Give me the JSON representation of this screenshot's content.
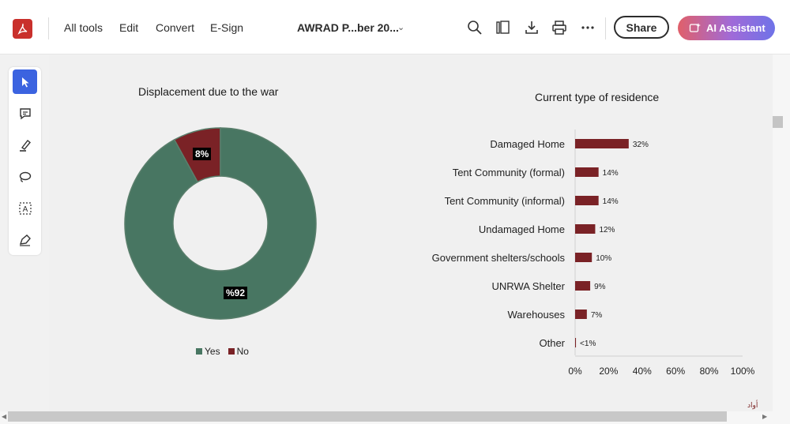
{
  "toolbar": {
    "menu": [
      "All tools",
      "Edit",
      "Convert",
      "E-Sign"
    ],
    "document_title": "AWRAD P...ber 20...",
    "share_label": "Share",
    "ai_label": "AI Assistant",
    "icons": [
      "search-icon",
      "pages-icon",
      "download-icon",
      "print-icon",
      "more-icon"
    ]
  },
  "tools": [
    "select-icon",
    "comment-icon",
    "highlight-icon",
    "lasso-icon",
    "text-select-icon",
    "sign-icon"
  ],
  "page": {
    "watermark": "ﺃﻭﺍﺩ"
  },
  "chart_data": [
    {
      "type": "pie",
      "title": "Displacement due to the war",
      "categories": [
        "Yes",
        "No"
      ],
      "values": [
        92,
        8
      ],
      "labels": [
        "%92",
        "8%"
      ],
      "colors": [
        "#487662",
        "#7a2226"
      ],
      "legend": "bottom"
    },
    {
      "type": "bar",
      "orientation": "horizontal",
      "title": "Current type of residence",
      "categories": [
        "Damaged Home",
        "Tent Community (formal)",
        "Tent Community (informal)",
        "Undamaged Home",
        "Government shelters/schools",
        "UNRWA Shelter",
        "Warehouses",
        "Other"
      ],
      "values": [
        32,
        14,
        14,
        12,
        10,
        9,
        7,
        0.5
      ],
      "labels": [
        "32%",
        "14%",
        "14%",
        "12%",
        "10%",
        "9%",
        "7%",
        "<1%"
      ],
      "xlim": [
        0,
        100
      ],
      "xticks": [
        "0%",
        "20%",
        "40%",
        "60%",
        "80%",
        "100%"
      ],
      "color": "#7a2226",
      "grid": false
    }
  ]
}
